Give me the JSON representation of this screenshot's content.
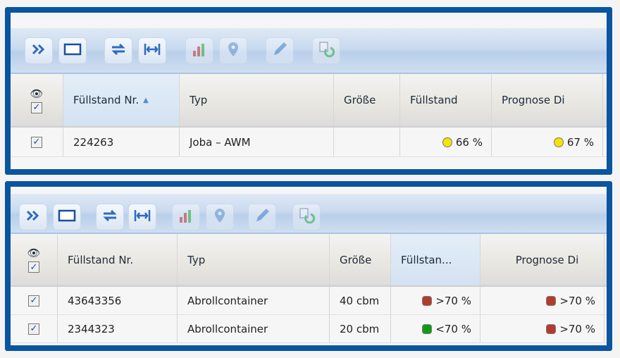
{
  "colors": {
    "frame": "#0a55a0",
    "yellow": "#f5e400",
    "red": "#b53a2b",
    "green": "#0e9d12"
  },
  "toolbar_icons": [
    "expand-icon",
    "window-icon",
    "refresh-icon",
    "fit-width-icon",
    "bar-chart-icon",
    "map-pin-icon",
    "pencil-icon",
    "document-undo-icon"
  ],
  "panel1": {
    "headers": {
      "visible": "eye-icon",
      "nr": "Füllstand Nr.",
      "typ": "Typ",
      "groesse": "Größe",
      "fuellstand": "Füllstand",
      "prognose": "Prognose Di"
    },
    "rows": [
      {
        "checked": true,
        "nr": "224263",
        "typ": "Joba – AWM",
        "groesse": "",
        "fuellstand": "66 %",
        "fuellstand_status": "yellow",
        "prognose": "67 %",
        "prognose_status": "yellow"
      }
    ]
  },
  "panel2": {
    "headers": {
      "visible": "eye-icon",
      "nr": "Füllstand Nr.",
      "typ": "Typ",
      "groesse": "Größe",
      "fuellstand": "Füllstan...",
      "prognose": "Prognose Di"
    },
    "rows": [
      {
        "checked": true,
        "nr": "43643356",
        "typ": "Abrollcontainer",
        "groesse": "40 cbm",
        "fuellstand": ">70 %",
        "fuellstand_status": "red",
        "prognose": ">70 %",
        "prognose_status": "red"
      },
      {
        "checked": true,
        "nr": "2344323",
        "typ": "Abrollcontainer",
        "groesse": "20 cbm",
        "fuellstand": "<70 %",
        "fuellstand_status": "green",
        "prognose": ">70 %",
        "prognose_status": "red"
      }
    ]
  }
}
